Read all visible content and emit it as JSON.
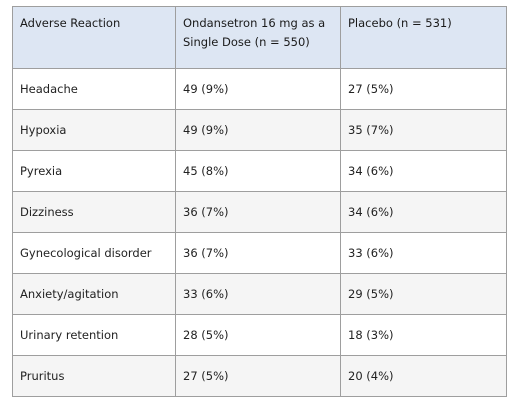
{
  "table": {
    "headers": [
      "Adverse Reaction",
      "Ondansetron 16 mg as a Single Dose (n = 550)",
      "Placebo (n = 531)"
    ],
    "rows": [
      [
        "Headache",
        "49 (9%)",
        "27 (5%)"
      ],
      [
        "Hypoxia",
        "49 (9%)",
        "35 (7%)"
      ],
      [
        "Pyrexia",
        "45 (8%)",
        "34 (6%)"
      ],
      [
        "Dizziness",
        "36 (7%)",
        "34 (6%)"
      ],
      [
        "Gynecological disorder",
        "36 (7%)",
        "33 (6%)"
      ],
      [
        "Anxiety/agitation",
        "33 (6%)",
        "29 (5%)"
      ],
      [
        "Urinary retention",
        "28 (5%)",
        "18 (3%)"
      ],
      [
        "Pruritus",
        "27 (5%)",
        "20 (4%)"
      ]
    ]
  }
}
